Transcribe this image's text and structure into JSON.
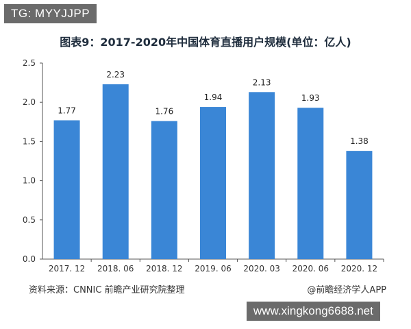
{
  "overlay": {
    "tg_label": "TG: MYYJJPP",
    "site_banner": "www.xingkong6688.net"
  },
  "footer": {
    "source": "资料来源：CNNIC 前瞻产业研究院整理",
    "credit": "@前瞻经济学人APP"
  },
  "colors": {
    "bar": "#3a86d6",
    "axis": "#555555",
    "grid": "#e6e6e6"
  },
  "chart_data": {
    "type": "bar",
    "title": "图表9：2017-2020年中国体育直播用户规模(单位：亿人)",
    "xlabel": "",
    "ylabel": "",
    "categories": [
      "2017. 12",
      "2018. 06",
      "2018. 12",
      "2019. 06",
      "2020. 03",
      "2020. 06",
      "2020. 12"
    ],
    "values": [
      1.77,
      2.23,
      1.76,
      1.94,
      2.13,
      1.93,
      1.38
    ],
    "data_labels": [
      "1.77",
      "2.23",
      "1.76",
      "1.94",
      "2.13",
      "1.93",
      "1.38"
    ],
    "ylim": [
      0,
      2.5
    ],
    "yticks": [
      "0.0",
      "0.5",
      "1.0",
      "1.5",
      "2.0",
      "2.5"
    ],
    "grid": false,
    "legend": "none"
  }
}
